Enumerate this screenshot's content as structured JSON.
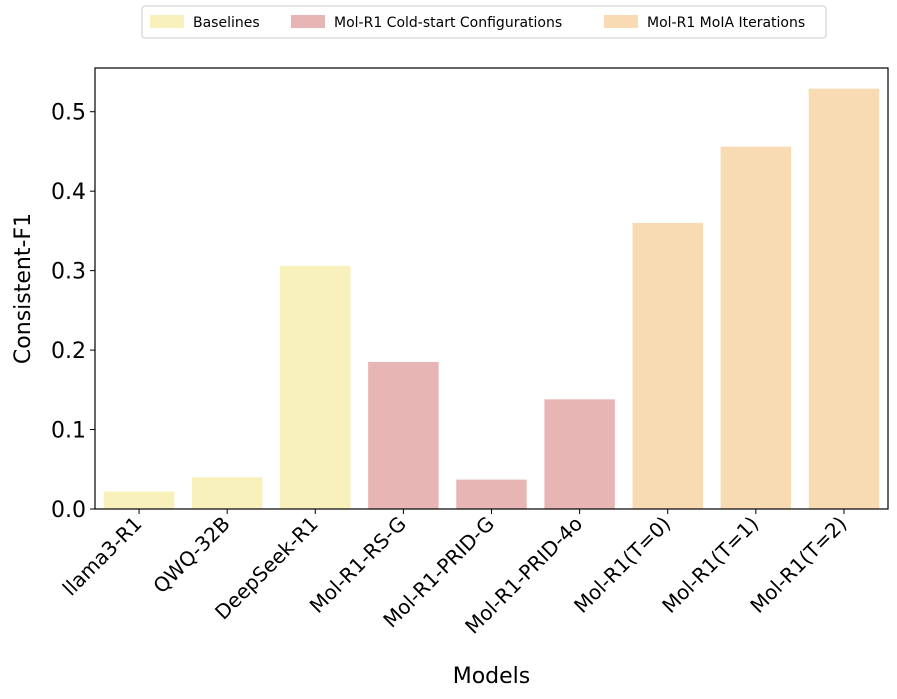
{
  "chart_data": {
    "type": "bar",
    "categories": [
      "llama3-R1",
      "QWQ-32B",
      "DeepSeek-R1",
      "Mol-R1-RS-G",
      "Mol-R1-PRID-G",
      "Mol-R1-PRID-4o",
      "Mol-R1(T=0)",
      "Mol-R1(T=1)",
      "Mol-R1(T=2)"
    ],
    "values": [
      0.022,
      0.04,
      0.306,
      0.185,
      0.037,
      0.138,
      0.36,
      0.456,
      0.529
    ],
    "groups": [
      "Baselines",
      "Baselines",
      "Baselines",
      "Mol-R1 Cold-start Configurations",
      "Mol-R1 Cold-start Configurations",
      "Mol-R1 Cold-start Configurations",
      "Mol-R1 MoIA Iterations",
      "Mol-R1 MoIA Iterations",
      "Mol-R1 MoIA Iterations"
    ],
    "legend": [
      {
        "name": "Baselines",
        "color": "#f9f1bb"
      },
      {
        "name": "Mol-R1 Cold-start Configurations",
        "color": "#e8b5b5"
      },
      {
        "name": "Mol-R1 MoIA Iterations",
        "color": "#f8dab3"
      }
    ],
    "legend_position": "top-center",
    "xlabel": "Models",
    "ylabel": "Consistent-F1",
    "ylim": [
      0,
      0.555
    ],
    "yticks": [
      "0.0",
      "0.1",
      "0.2",
      "0.3",
      "0.4",
      "0.5"
    ],
    "ytick_values": [
      0,
      0.1,
      0.2,
      0.3,
      0.4,
      0.5
    ],
    "grid": false
  }
}
